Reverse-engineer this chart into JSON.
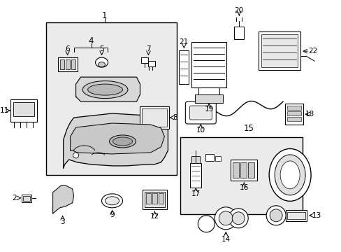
{
  "background_color": "#ffffff",
  "fig_width": 4.89,
  "fig_height": 3.6,
  "dpi": 100,
  "line_color": "#000000",
  "text_color": "#000000",
  "box_fill": "#e8e8e8",
  "font_size": 7.5
}
